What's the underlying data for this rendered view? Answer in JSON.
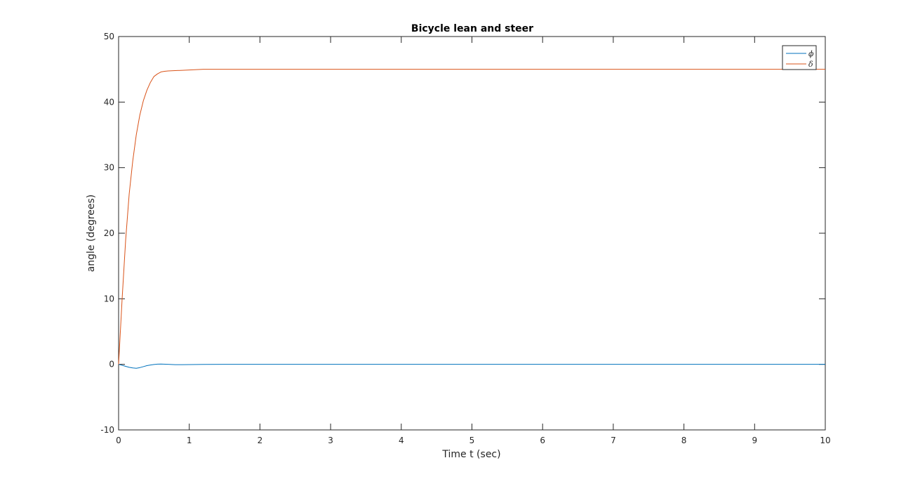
{
  "chart_data": {
    "type": "line",
    "title": "Bicycle lean and steer",
    "xlabel": "Time t (sec)",
    "ylabel": "angle (degrees)",
    "xlim": [
      0,
      10
    ],
    "ylim": [
      -10,
      50
    ],
    "xticks": [
      0,
      1,
      2,
      3,
      4,
      5,
      6,
      7,
      8,
      9,
      10
    ],
    "yticks": [
      -10,
      0,
      10,
      20,
      30,
      40,
      50
    ],
    "grid": false,
    "legend_position": "top-right",
    "series": [
      {
        "name": "ϕ",
        "color": "#0072BD",
        "x": [
          0,
          0.05,
          0.1,
          0.15,
          0.2,
          0.25,
          0.3,
          0.35,
          0.4,
          0.45,
          0.5,
          0.55,
          0.6,
          0.7,
          0.8,
          0.9,
          1.0,
          1.2,
          1.5,
          2,
          3,
          4,
          5,
          6,
          7,
          8,
          9,
          10
        ],
        "y": [
          0,
          -0.15,
          -0.3,
          -0.45,
          -0.55,
          -0.6,
          -0.5,
          -0.35,
          -0.2,
          -0.1,
          -0.02,
          0.03,
          0.05,
          0,
          -0.05,
          -0.05,
          -0.03,
          -0.01,
          0,
          0,
          0,
          0,
          0,
          0,
          0,
          0,
          0,
          0
        ]
      },
      {
        "name": "δ",
        "color": "#D95319",
        "x": [
          0,
          0.05,
          0.1,
          0.15,
          0.2,
          0.25,
          0.3,
          0.35,
          0.4,
          0.45,
          0.5,
          0.55,
          0.6,
          0.65,
          0.7,
          0.8,
          0.9,
          1.0,
          1.1,
          1.2,
          1.3,
          1.4,
          1.6,
          1.8,
          2,
          3,
          4,
          5,
          6,
          7,
          8,
          9,
          10
        ],
        "y": [
          0,
          10,
          19,
          26,
          31,
          35,
          38,
          40.2,
          41.8,
          43,
          43.9,
          44.3,
          44.6,
          44.7,
          44.75,
          44.8,
          44.85,
          44.9,
          44.95,
          45,
          45,
          45,
          45,
          45,
          45,
          45,
          45,
          45,
          45,
          45,
          45,
          45,
          45
        ]
      }
    ]
  }
}
